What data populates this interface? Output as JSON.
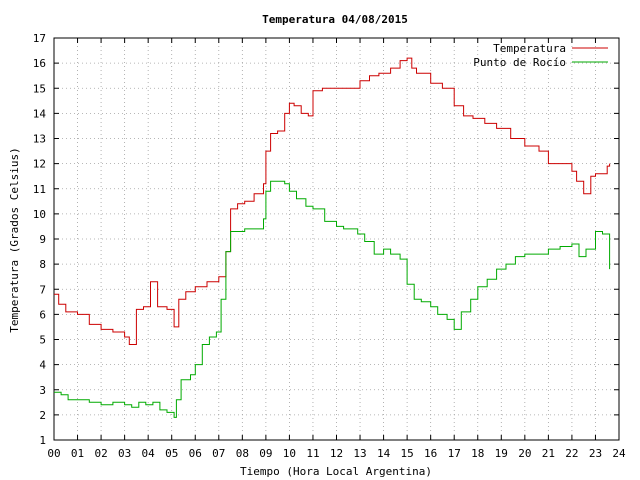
{
  "chart_data": {
    "type": "line",
    "title": "Temperatura 04/08/2015",
    "xlabel": "Tiempo (Hora Local Argentina)",
    "ylabel": "Temperatura (Grados Celsius)",
    "xlim": [
      0,
      24
    ],
    "ylim": [
      1,
      17
    ],
    "x_ticks": [
      "00",
      "01",
      "02",
      "03",
      "04",
      "05",
      "06",
      "07",
      "08",
      "09",
      "10",
      "11",
      "12",
      "13",
      "14",
      "15",
      "16",
      "17",
      "18",
      "19",
      "20",
      "21",
      "22",
      "23",
      "24"
    ],
    "y_ticks": [
      "1",
      "2",
      "3",
      "4",
      "5",
      "6",
      "7",
      "8",
      "9",
      "10",
      "11",
      "12",
      "13",
      "14",
      "15",
      "16",
      "17"
    ],
    "grid": true,
    "legend_position": "top-right",
    "series": [
      {
        "name": "Temperatura",
        "color": "#cc0000",
        "x": [
          0,
          0.2,
          0.5,
          1,
          1.5,
          2,
          2.5,
          3,
          3.2,
          3.5,
          3.8,
          4.1,
          4.4,
          4.8,
          5.1,
          5.3,
          5.6,
          6,
          6.5,
          7,
          7.3,
          7.5,
          7.8,
          8.1,
          8.5,
          8.9,
          9,
          9.2,
          9.5,
          9.8,
          10,
          10.2,
          10.5,
          10.8,
          11,
          11.4,
          11.8,
          12,
          12.4,
          12.8,
          13,
          13.4,
          13.8,
          14,
          14.3,
          14.7,
          15,
          15.2,
          15.4,
          15.7,
          16,
          16.5,
          17,
          17.4,
          17.8,
          18.3,
          18.8,
          19.4,
          20,
          20.6,
          21,
          21.5,
          22,
          22.2,
          22.5,
          22.8,
          23,
          23.2,
          23.5,
          23.6
        ],
        "y": [
          6.8,
          6.4,
          6.1,
          6.0,
          5.6,
          5.4,
          5.3,
          5.1,
          4.8,
          6.2,
          6.3,
          7.3,
          6.3,
          6.2,
          5.5,
          6.6,
          6.9,
          7.1,
          7.3,
          7.5,
          8.5,
          10.2,
          10.4,
          10.5,
          10.8,
          11.2,
          12.5,
          13.2,
          13.3,
          14.0,
          14.4,
          14.3,
          14.0,
          13.9,
          14.9,
          15.0,
          15.0,
          15.0,
          15.0,
          15.0,
          15.3,
          15.5,
          15.6,
          15.6,
          15.8,
          16.1,
          16.2,
          15.8,
          15.6,
          15.6,
          15.2,
          15.0,
          14.3,
          13.9,
          13.8,
          13.6,
          13.4,
          13.0,
          12.7,
          12.5,
          12.0,
          12.0,
          11.7,
          11.3,
          10.8,
          11.5,
          11.6,
          11.6,
          11.9,
          12.0
        ]
      },
      {
        "name": "Punto de Rocío",
        "color": "#00aa00",
        "x": [
          0,
          0.3,
          0.6,
          1,
          1.5,
          2,
          2.5,
          3,
          3.3,
          3.6,
          3.9,
          4.2,
          4.5,
          4.8,
          5.1,
          5.2,
          5.4,
          5.8,
          6,
          6.3,
          6.6,
          6.9,
          7.1,
          7.3,
          7.5,
          7.8,
          8.1,
          8.5,
          8.9,
          9,
          9.2,
          9.5,
          9.8,
          10,
          10.3,
          10.7,
          11,
          11.5,
          12,
          12.3,
          12.6,
          12.9,
          13.2,
          13.6,
          14,
          14.3,
          14.7,
          15,
          15.3,
          15.6,
          16,
          16.3,
          16.7,
          17,
          17.3,
          17.7,
          18,
          18.4,
          18.8,
          19.2,
          19.6,
          20,
          20.5,
          21,
          21.5,
          22,
          22.3,
          22.6,
          23,
          23.3,
          23.6
        ],
        "y": [
          2.9,
          2.8,
          2.6,
          2.6,
          2.5,
          2.4,
          2.5,
          2.4,
          2.3,
          2.5,
          2.4,
          2.5,
          2.2,
          2.1,
          1.9,
          2.6,
          3.4,
          3.6,
          4.0,
          4.8,
          5.1,
          5.3,
          6.6,
          8.5,
          9.3,
          9.3,
          9.4,
          9.4,
          9.8,
          10.9,
          11.3,
          11.3,
          11.2,
          10.9,
          10.6,
          10.3,
          10.2,
          9.7,
          9.5,
          9.4,
          9.4,
          9.2,
          8.9,
          8.4,
          8.6,
          8.4,
          8.2,
          7.2,
          6.6,
          6.5,
          6.3,
          6.0,
          5.8,
          5.4,
          6.1,
          6.6,
          7.1,
          7.4,
          7.8,
          8.0,
          8.3,
          8.4,
          8.4,
          8.6,
          8.7,
          8.8,
          8.3,
          8.6,
          9.3,
          9.2,
          7.8
        ]
      }
    ]
  }
}
